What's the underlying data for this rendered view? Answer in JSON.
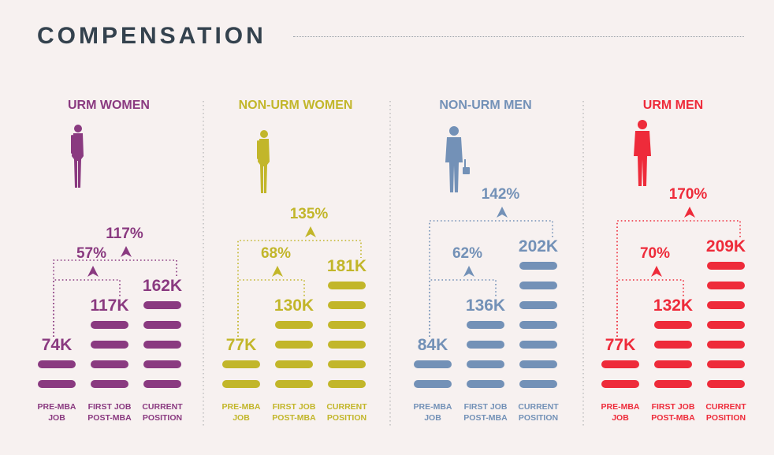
{
  "page": {
    "title": "COMPENSATION"
  },
  "chart_data": {
    "type": "bar",
    "title": "COMPENSATION",
    "categories": [
      "PRE-MBA\nJOB",
      "FIRST JOB\nPOST-MBA",
      "CURRENT\nPOSITION"
    ],
    "units": "K",
    "series": [
      {
        "name": "URM WOMEN",
        "color": "#8a3a80",
        "icon": "woman-figure-icon",
        "values": [
          74,
          117,
          162
        ],
        "value_labels": [
          "74K",
          "117K",
          "162K"
        ],
        "increases": [
          "57%",
          "117%"
        ]
      },
      {
        "name": "NON-URM WOMEN",
        "color": "#c2b62a",
        "icon": "woman-figure-icon",
        "values": [
          77,
          130,
          181
        ],
        "value_labels": [
          "77K",
          "130K",
          "181K"
        ],
        "increases": [
          "68%",
          "135%"
        ]
      },
      {
        "name": "NON-URM MEN",
        "color": "#7391b7",
        "icon": "businessman-figure-icon",
        "values": [
          84,
          136,
          202
        ],
        "value_labels": [
          "84K",
          "136K",
          "202K"
        ],
        "increases": [
          "62%",
          "142%"
        ]
      },
      {
        "name": "URM MEN",
        "color": "#ee2b3a",
        "icon": "man-figure-icon",
        "values": [
          77,
          132,
          209
        ],
        "value_labels": [
          "77K",
          "132K",
          "209K"
        ],
        "increases": [
          "70%",
          "170%"
        ]
      }
    ],
    "grid": false,
    "legend": "none"
  }
}
